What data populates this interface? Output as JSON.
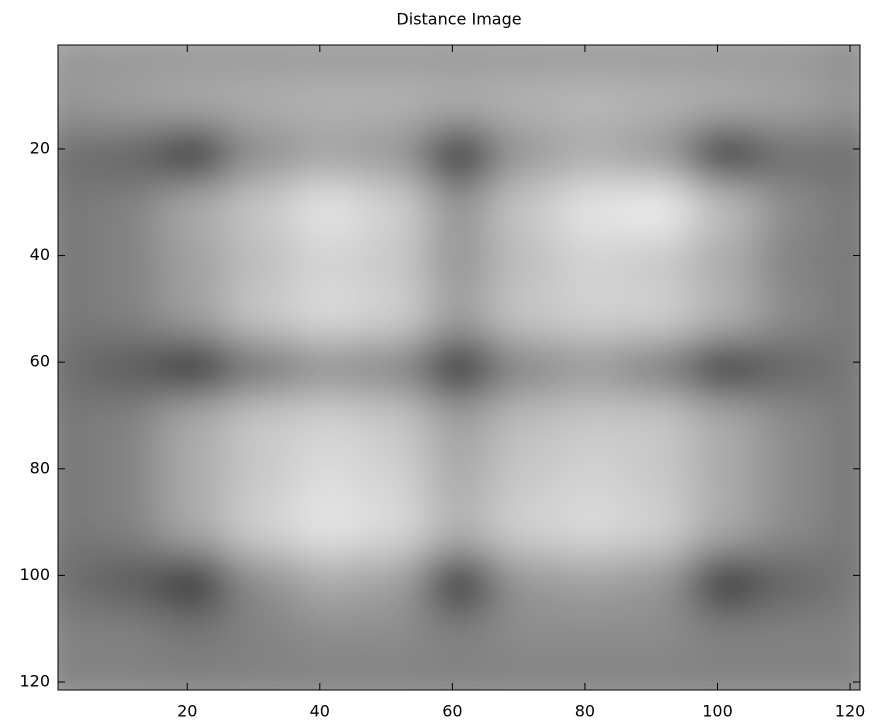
{
  "chart_data": {
    "type": "image",
    "title": "Distance Image",
    "colormap": "gray",
    "x": [
      1,
      11,
      21,
      31,
      41,
      51,
      61,
      71,
      81,
      91,
      101,
      111,
      121
    ],
    "y": [
      1,
      11,
      21,
      31,
      41,
      51,
      61,
      71,
      81,
      91,
      101,
      111,
      121
    ],
    "zlim": [
      0,
      255
    ],
    "z": [
      [
        150,
        150,
        150,
        150,
        150,
        150,
        150,
        150,
        150,
        150,
        150,
        150,
        140
      ],
      [
        150,
        160,
        170,
        175,
        180,
        180,
        175,
        180,
        185,
        180,
        175,
        165,
        150
      ],
      [
        110,
        100,
        30,
        140,
        160,
        150,
        30,
        150,
        170,
        150,
        30,
        110,
        110
      ],
      [
        120,
        130,
        170,
        200,
        230,
        210,
        150,
        200,
        230,
        240,
        190,
        140,
        120
      ],
      [
        120,
        130,
        160,
        190,
        210,
        200,
        150,
        190,
        210,
        200,
        170,
        130,
        120
      ],
      [
        120,
        130,
        160,
        200,
        220,
        210,
        160,
        200,
        210,
        210,
        180,
        140,
        120
      ],
      [
        110,
        90,
        30,
        110,
        140,
        130,
        30,
        130,
        150,
        120,
        40,
        100,
        120
      ],
      [
        120,
        130,
        170,
        200,
        210,
        200,
        160,
        190,
        200,
        200,
        170,
        140,
        120
      ],
      [
        120,
        130,
        170,
        200,
        220,
        210,
        170,
        200,
        210,
        200,
        170,
        140,
        120
      ],
      [
        120,
        130,
        170,
        210,
        230,
        220,
        180,
        210,
        220,
        210,
        170,
        140,
        120
      ],
      [
        110,
        90,
        40,
        140,
        170,
        160,
        40,
        150,
        160,
        150,
        40,
        100,
        120
      ],
      [
        130,
        130,
        120,
        130,
        140,
        140,
        130,
        140,
        140,
        140,
        130,
        130,
        130
      ],
      [
        130,
        130,
        130,
        130,
        130,
        130,
        130,
        130,
        130,
        130,
        130,
        130,
        130
      ]
    ],
    "xlim": [
      0.5,
      121.5
    ],
    "ylim": [
      121.5,
      0.5
    ],
    "xticks": [
      20,
      40,
      60,
      80,
      100,
      120
    ],
    "yticks": [
      20,
      40,
      60,
      80,
      100,
      120
    ]
  }
}
